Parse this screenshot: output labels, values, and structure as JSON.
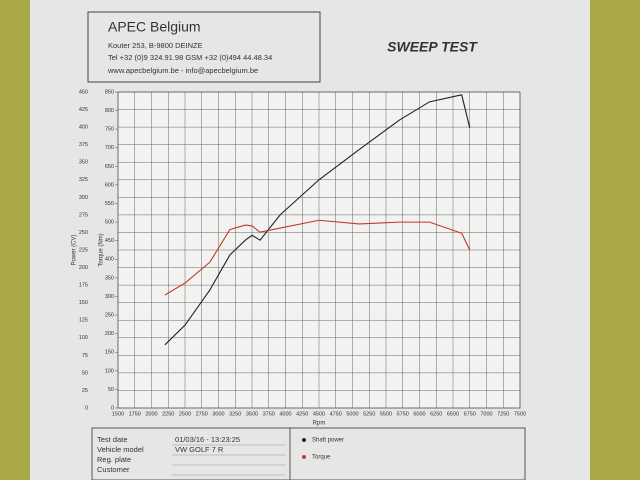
{
  "header": {
    "company": "APEC Belgium",
    "address": "Kouter 253, B-9800 DEINZE",
    "phone": "Tel +32 (0)9 324.91.98 GSM +32 (0)494 44.48.34",
    "web": "www.apecbelgium.be - info@apecbelgium.be",
    "test_name": "SWEEP TEST"
  },
  "table": {
    "rows": [
      {
        "label": "Test date",
        "value": "01/03/16 - 13:23:25"
      },
      {
        "label": "Vehicle model",
        "value": "VW GOLF 7 R"
      },
      {
        "label": "Reg. plate"
      },
      {
        "label": "Customer"
      }
    ]
  },
  "chart_data": {
    "type": "line",
    "xlabel": "Rpm",
    "ylabel": "Power (CV)",
    "y2label": "Torque (Nm)",
    "x": [
      2200,
      2500,
      2870,
      3170,
      3400,
      3500,
      3620,
      3920,
      4500,
      5100,
      5700,
      6150,
      6630,
      6750
    ],
    "series": [
      {
        "name": "Shaft power",
        "color": "#222222",
        "axis": "y",
        "values": [
          90,
          118,
          168,
          218,
          239,
          246,
          239,
          275,
          325,
          368,
          410,
          436,
          446,
          399
        ]
      },
      {
        "name": "Torque",
        "color": "#c0392b",
        "axis": "y2",
        "values": [
          304,
          336,
          392,
          480,
          492,
          490,
          473,
          484,
          505,
          495,
          500,
          500,
          470,
          425
        ]
      }
    ],
    "xlim": [
      1500,
      7500
    ],
    "xticks": [
      1500,
      1750,
      2000,
      2250,
      2500,
      2750,
      3000,
      3250,
      3500,
      3750,
      4000,
      4250,
      4500,
      4750,
      5000,
      5250,
      5500,
      5750,
      6000,
      6250,
      6500,
      6750,
      7000,
      7250,
      7500
    ],
    "ylim": [
      0,
      450
    ],
    "yticks": [
      0,
      25,
      50,
      75,
      100,
      125,
      150,
      175,
      200,
      225,
      250,
      275,
      300,
      325,
      350,
      375,
      400,
      425,
      450
    ],
    "y2lim": [
      0,
      850
    ],
    "y2ticks": [
      0,
      50,
      100,
      150,
      200,
      250,
      300,
      350,
      400,
      450,
      500,
      550,
      600,
      650,
      700,
      750,
      800,
      850
    ],
    "grid": true
  }
}
